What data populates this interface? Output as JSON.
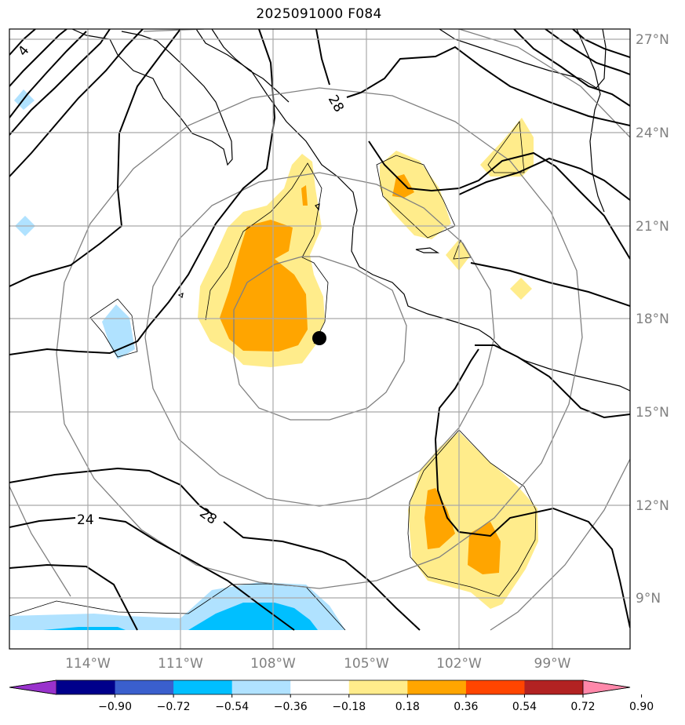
{
  "title": "2025091000 F084",
  "latitude_labels": [
    "27°N",
    "24°N",
    "21°N",
    "18°N",
    "15°N",
    "12°N",
    "9°N"
  ],
  "longitude_labels": [
    "114°W",
    "111°W",
    "108°W",
    "105°W",
    "102°W",
    "99°W"
  ],
  "contour_labels": [
    "28",
    "28",
    "24",
    "4"
  ],
  "colorbar": {
    "tick_labels": [
      "−0.90",
      "−0.72",
      "−0.54",
      "−0.36",
      "−0.18",
      "0.18",
      "0.36",
      "0.54",
      "0.72",
      "0.90"
    ],
    "colors": [
      "#9932cc",
      "#00008b",
      "#3a5fcd",
      "#00bfff",
      "#b0e2ff",
      "#ffffff",
      "#ffec8b",
      "#ffa500",
      "#ff4500",
      "#b22222",
      "#ff88aa"
    ]
  },
  "storm_center": "black dot marker",
  "colors": {
    "grid": "#a9a9a9",
    "range_rings": "#808080",
    "contour": "#000000",
    "fill_light_yellow": "#ffec8b",
    "fill_orange": "#ffa500",
    "fill_light_blue": "#b0e2ff",
    "fill_blue": "#00bfff"
  }
}
